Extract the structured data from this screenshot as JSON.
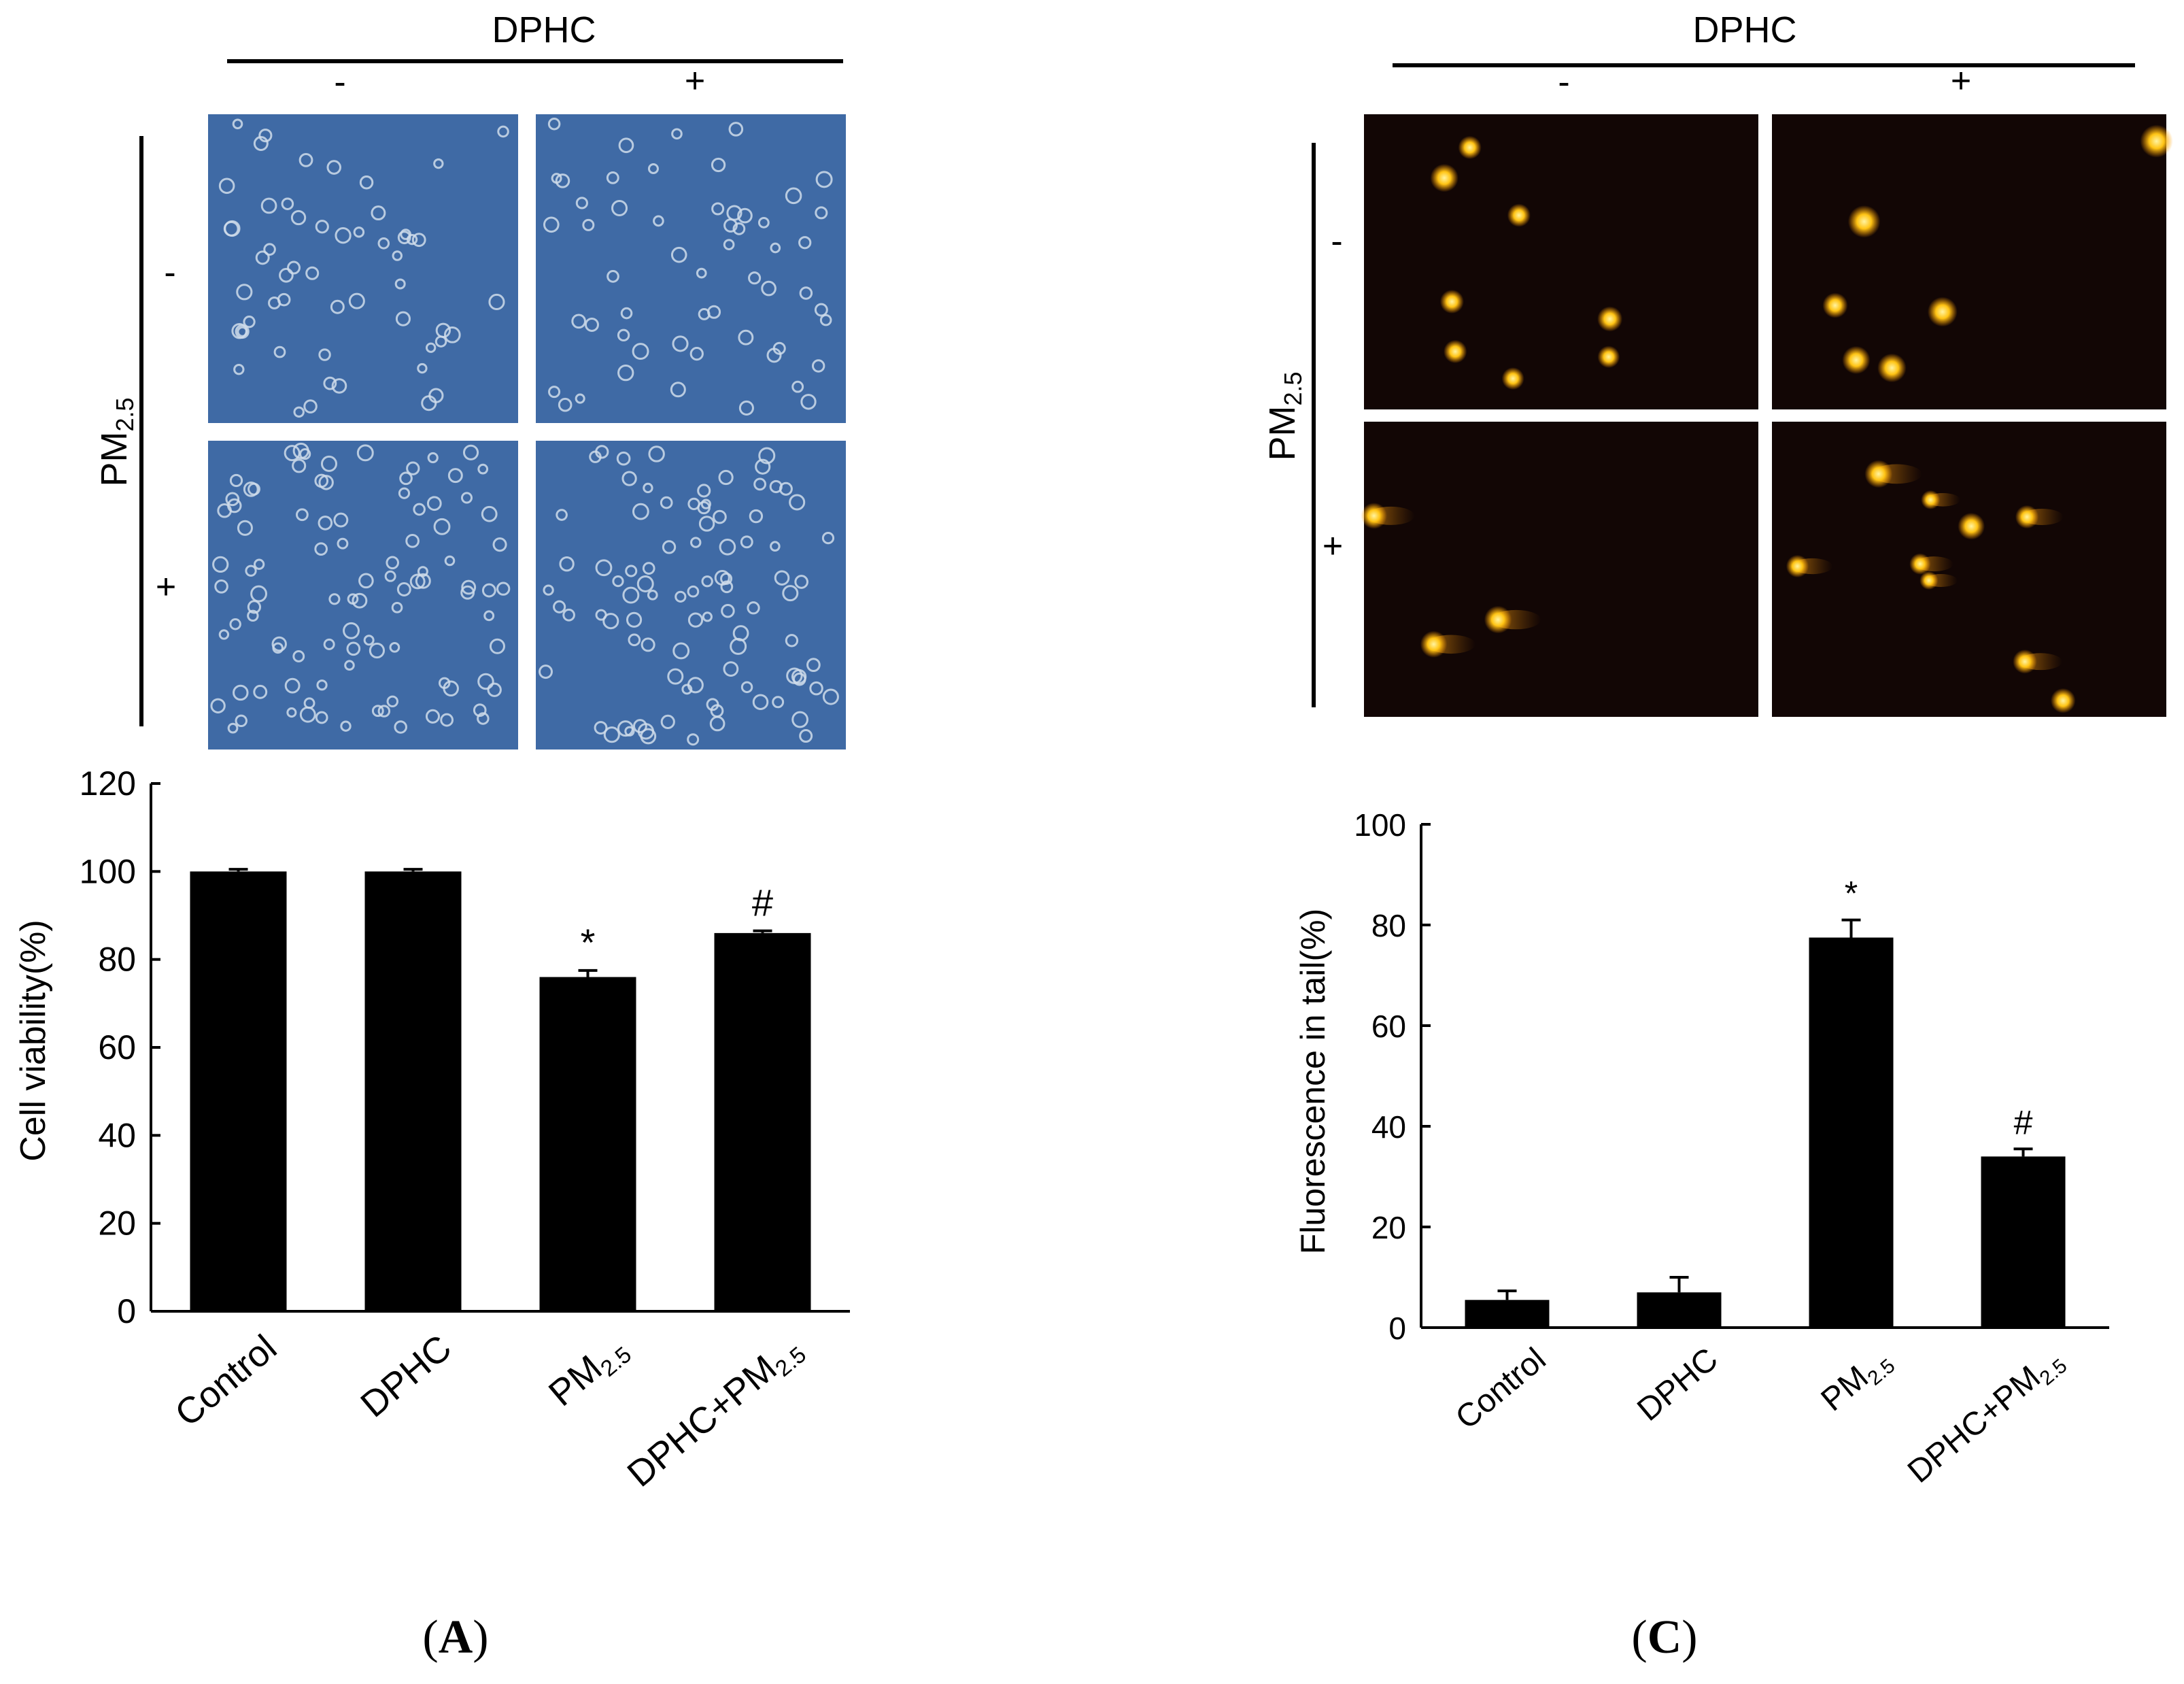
{
  "panels": [
    {
      "id": "A",
      "label_open": "(",
      "label_letter": "A",
      "label_close": ")",
      "header": {
        "title": "DPHC",
        "minus": "-",
        "plus": "+"
      },
      "side": {
        "title_main": "PM",
        "title_sub": "2.5",
        "minus": "-",
        "plus": "+"
      },
      "micrographs": {
        "background": "#3f6aa5",
        "cells_color": "#cfdcea",
        "tiles": [
          {
            "name": "dphc-minus-pm-minus",
            "count": 55
          },
          {
            "name": "dphc-plus-pm-minus",
            "count": 55
          },
          {
            "name": "dphc-minus-pm-plus",
            "count": 95
          },
          {
            "name": "dphc-plus-pm-plus",
            "count": 90
          }
        ]
      }
    },
    {
      "id": "C",
      "label_open": "(",
      "label_letter": "C",
      "label_close": ")",
      "header": {
        "title": "DPHC",
        "minus": "-",
        "plus": "+"
      },
      "side": {
        "title_main": "PM",
        "title_sub": "2.5",
        "minus": "-",
        "plus": "+"
      },
      "micrographs": {
        "background": "#120605",
        "cells_color": "#ffbf12",
        "tiles": [
          {
            "name": "dphc-minus-pm-minus",
            "count": 8
          },
          {
            "name": "dphc-plus-pm-minus",
            "count": 6
          },
          {
            "name": "dphc-minus-pm-plus",
            "count": 3
          },
          {
            "name": "dphc-plus-pm-plus",
            "count": 9
          }
        ]
      }
    }
  ],
  "chart_data": [
    {
      "type": "bar",
      "panel": "A",
      "title": "",
      "xlabel": "",
      "ylabel": "Cell viability(%)",
      "ylim": [
        0,
        120
      ],
      "yticks": [
        0,
        20,
        40,
        60,
        80,
        100,
        120
      ],
      "categories": [
        {
          "main": "Control",
          "sub": "",
          "tail": ""
        },
        {
          "main": "DPHC",
          "sub": "",
          "tail": ""
        },
        {
          "main": "PM",
          "sub": "2.5",
          "tail": ""
        },
        {
          "main": "DPHC+PM",
          "sub": "2.5",
          "tail": ""
        }
      ],
      "values": [
        100,
        100,
        76,
        86
      ],
      "errors": [
        0.5,
        0.5,
        1.5,
        0.5
      ],
      "annotations": [
        "",
        "",
        "*",
        "#"
      ],
      "bar_color": "#000000"
    },
    {
      "type": "bar",
      "panel": "C",
      "title": "",
      "xlabel": "",
      "ylabel": "Fluorescence in tail(%)",
      "ylim": [
        0,
        100
      ],
      "yticks": [
        0,
        20,
        40,
        60,
        80,
        100
      ],
      "categories": [
        {
          "main": "Control",
          "sub": "",
          "tail": ""
        },
        {
          "main": "DPHC",
          "sub": "",
          "tail": ""
        },
        {
          "main": "PM",
          "sub": "2.5",
          "tail": ""
        },
        {
          "main": "DPHC+PM",
          "sub": "2.5",
          "tail": ""
        }
      ],
      "values": [
        5.5,
        7,
        77.5,
        34
      ],
      "errors": [
        1.8,
        3,
        3.5,
        1.5
      ],
      "annotations": [
        "",
        "",
        "*",
        "#"
      ],
      "bar_color": "#000000"
    }
  ]
}
